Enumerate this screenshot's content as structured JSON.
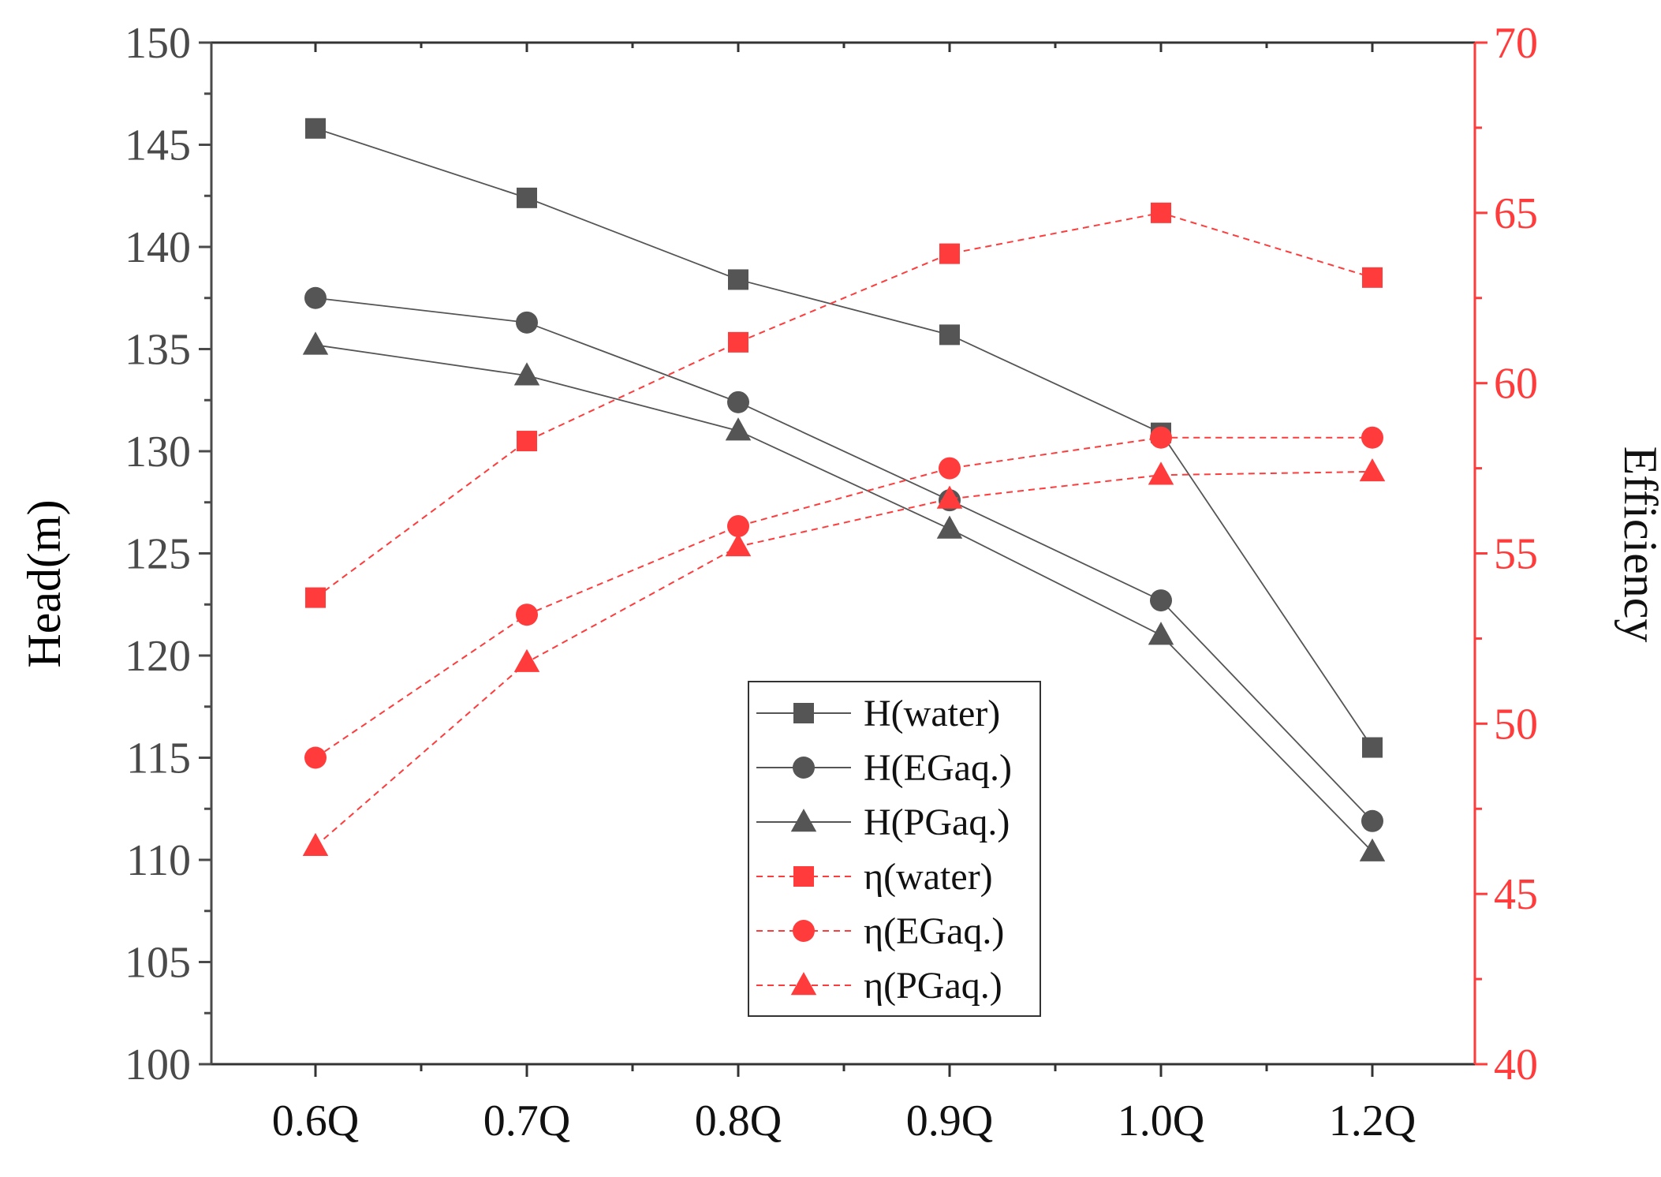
{
  "chart_data": {
    "type": "line",
    "categories": [
      "0.6Q",
      "0.7Q",
      "0.8Q",
      "0.9Q",
      "1.0Q",
      "1.2Q"
    ],
    "y_left": {
      "label": "Head(m)",
      "range": [
        100,
        150
      ],
      "ticks": [
        100,
        105,
        110,
        115,
        120,
        125,
        130,
        135,
        140,
        145,
        150
      ],
      "color": "#4a4a4a"
    },
    "y_right": {
      "label": "Efficiency",
      "range": [
        40,
        70
      ],
      "ticks": [
        40,
        45,
        50,
        55,
        60,
        65,
        70
      ],
      "color": "#ff3b3b"
    },
    "series": [
      {
        "name": "H(water)",
        "axis": "left",
        "marker": "square",
        "style": "solid",
        "color": "#555555",
        "values": [
          145.8,
          142.4,
          138.4,
          135.7,
          130.9,
          115.5
        ]
      },
      {
        "name": "H(EGaq.)",
        "axis": "left",
        "marker": "circle",
        "style": "solid",
        "color": "#555555",
        "values": [
          137.5,
          136.3,
          132.4,
          127.6,
          122.7,
          111.9
        ]
      },
      {
        "name": "H(PGaq.)",
        "axis": "left",
        "marker": "triangle",
        "style": "solid",
        "color": "#555555",
        "values": [
          135.2,
          133.7,
          131.0,
          126.2,
          121.0,
          110.4
        ]
      },
      {
        "name": "η(water)",
        "axis": "right",
        "marker": "square",
        "style": "dashed",
        "color": "#ff3b3b",
        "values": [
          53.7,
          58.3,
          61.2,
          63.8,
          65.0,
          63.1
        ]
      },
      {
        "name": "η(EGaq.)",
        "axis": "right",
        "marker": "circle",
        "style": "dashed",
        "color": "#ff3b3b",
        "values": [
          49.0,
          53.2,
          55.8,
          57.5,
          58.4,
          58.4
        ]
      },
      {
        "name": "η(PGaq.)",
        "axis": "right",
        "marker": "triangle",
        "style": "dashed",
        "color": "#ff3b3b",
        "values": [
          46.4,
          51.8,
          55.2,
          56.6,
          57.3,
          57.4
        ]
      }
    ],
    "legend": {
      "position": "bottom-center"
    }
  }
}
